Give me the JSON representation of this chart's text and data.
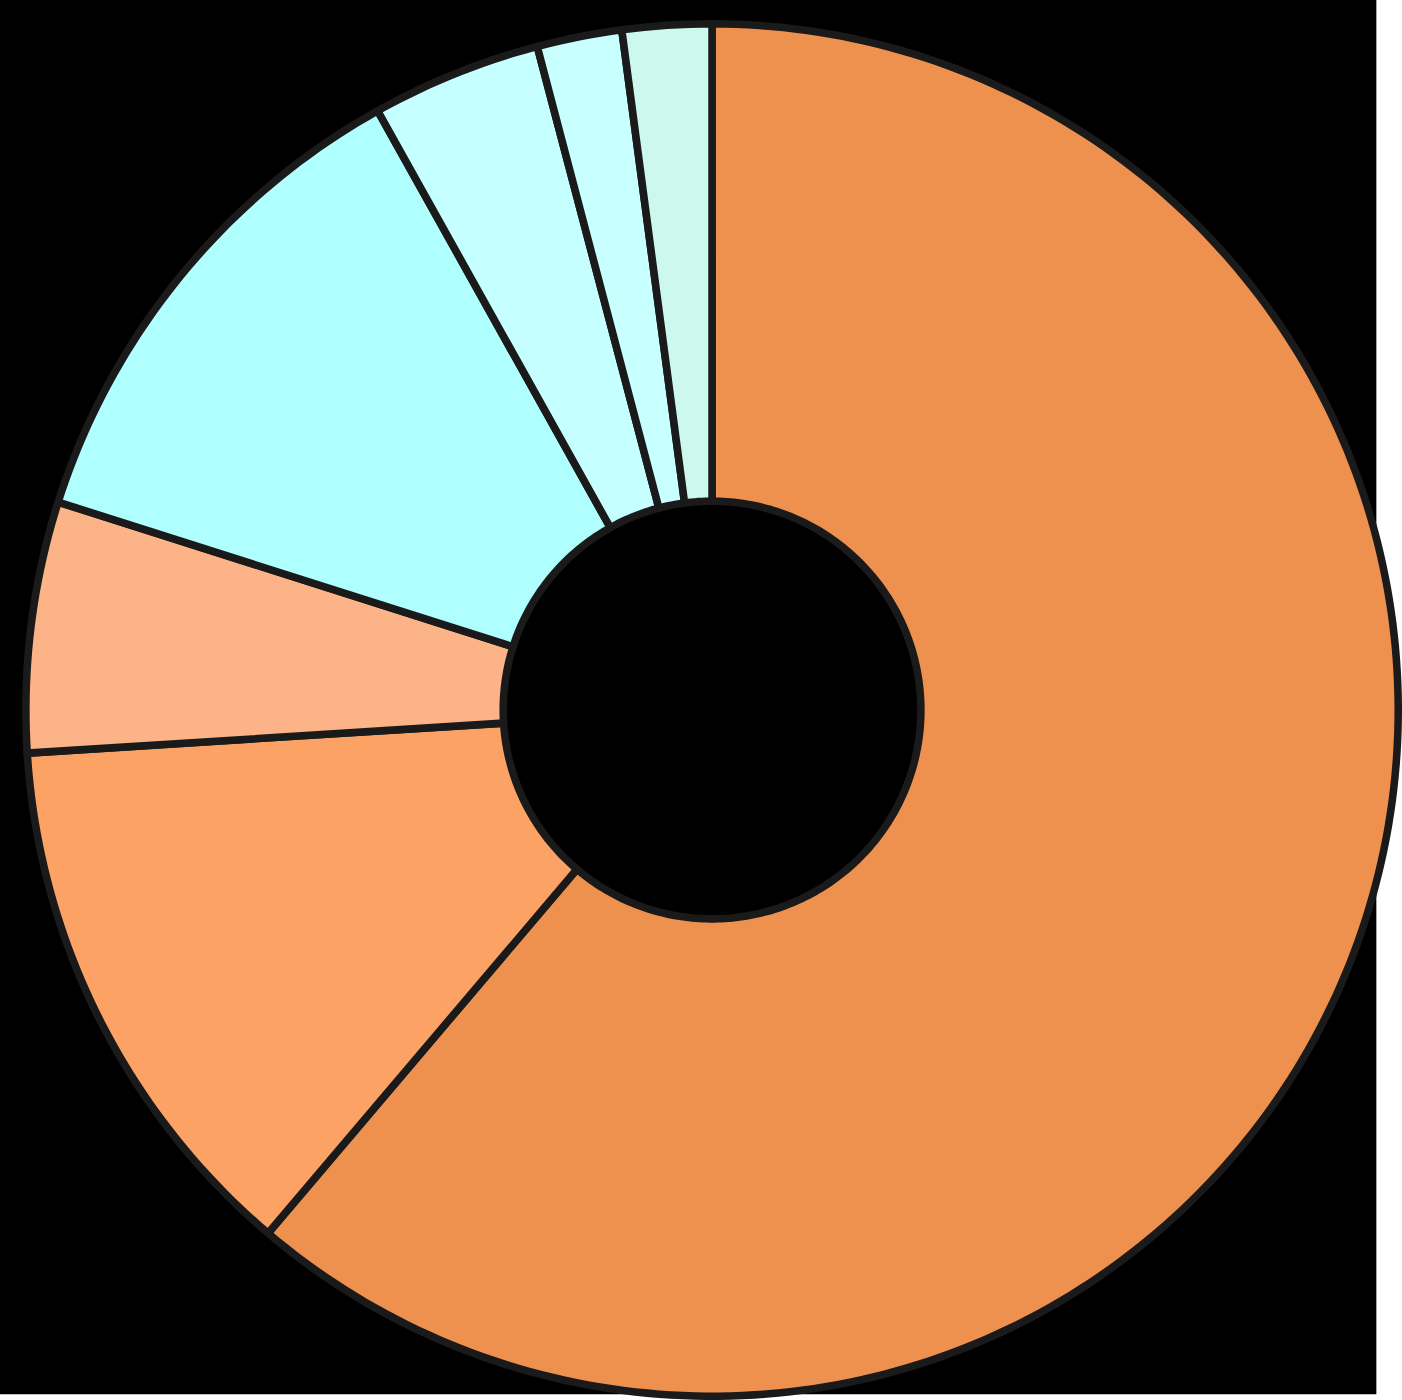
{
  "chart_data": {
    "type": "donut",
    "categories": [
      null,
      null,
      null,
      null,
      null,
      null,
      null
    ],
    "values": [
      61.2,
      12.8,
      5.9,
      12.0,
      4.0,
      2.0,
      2.1
    ],
    "colors": [
      "#ee914f",
      "#fca265",
      "#fcb387",
      "#b0ffff",
      "#c5ffff",
      "#c8ffff",
      "#ccf8ee"
    ]
  }
}
